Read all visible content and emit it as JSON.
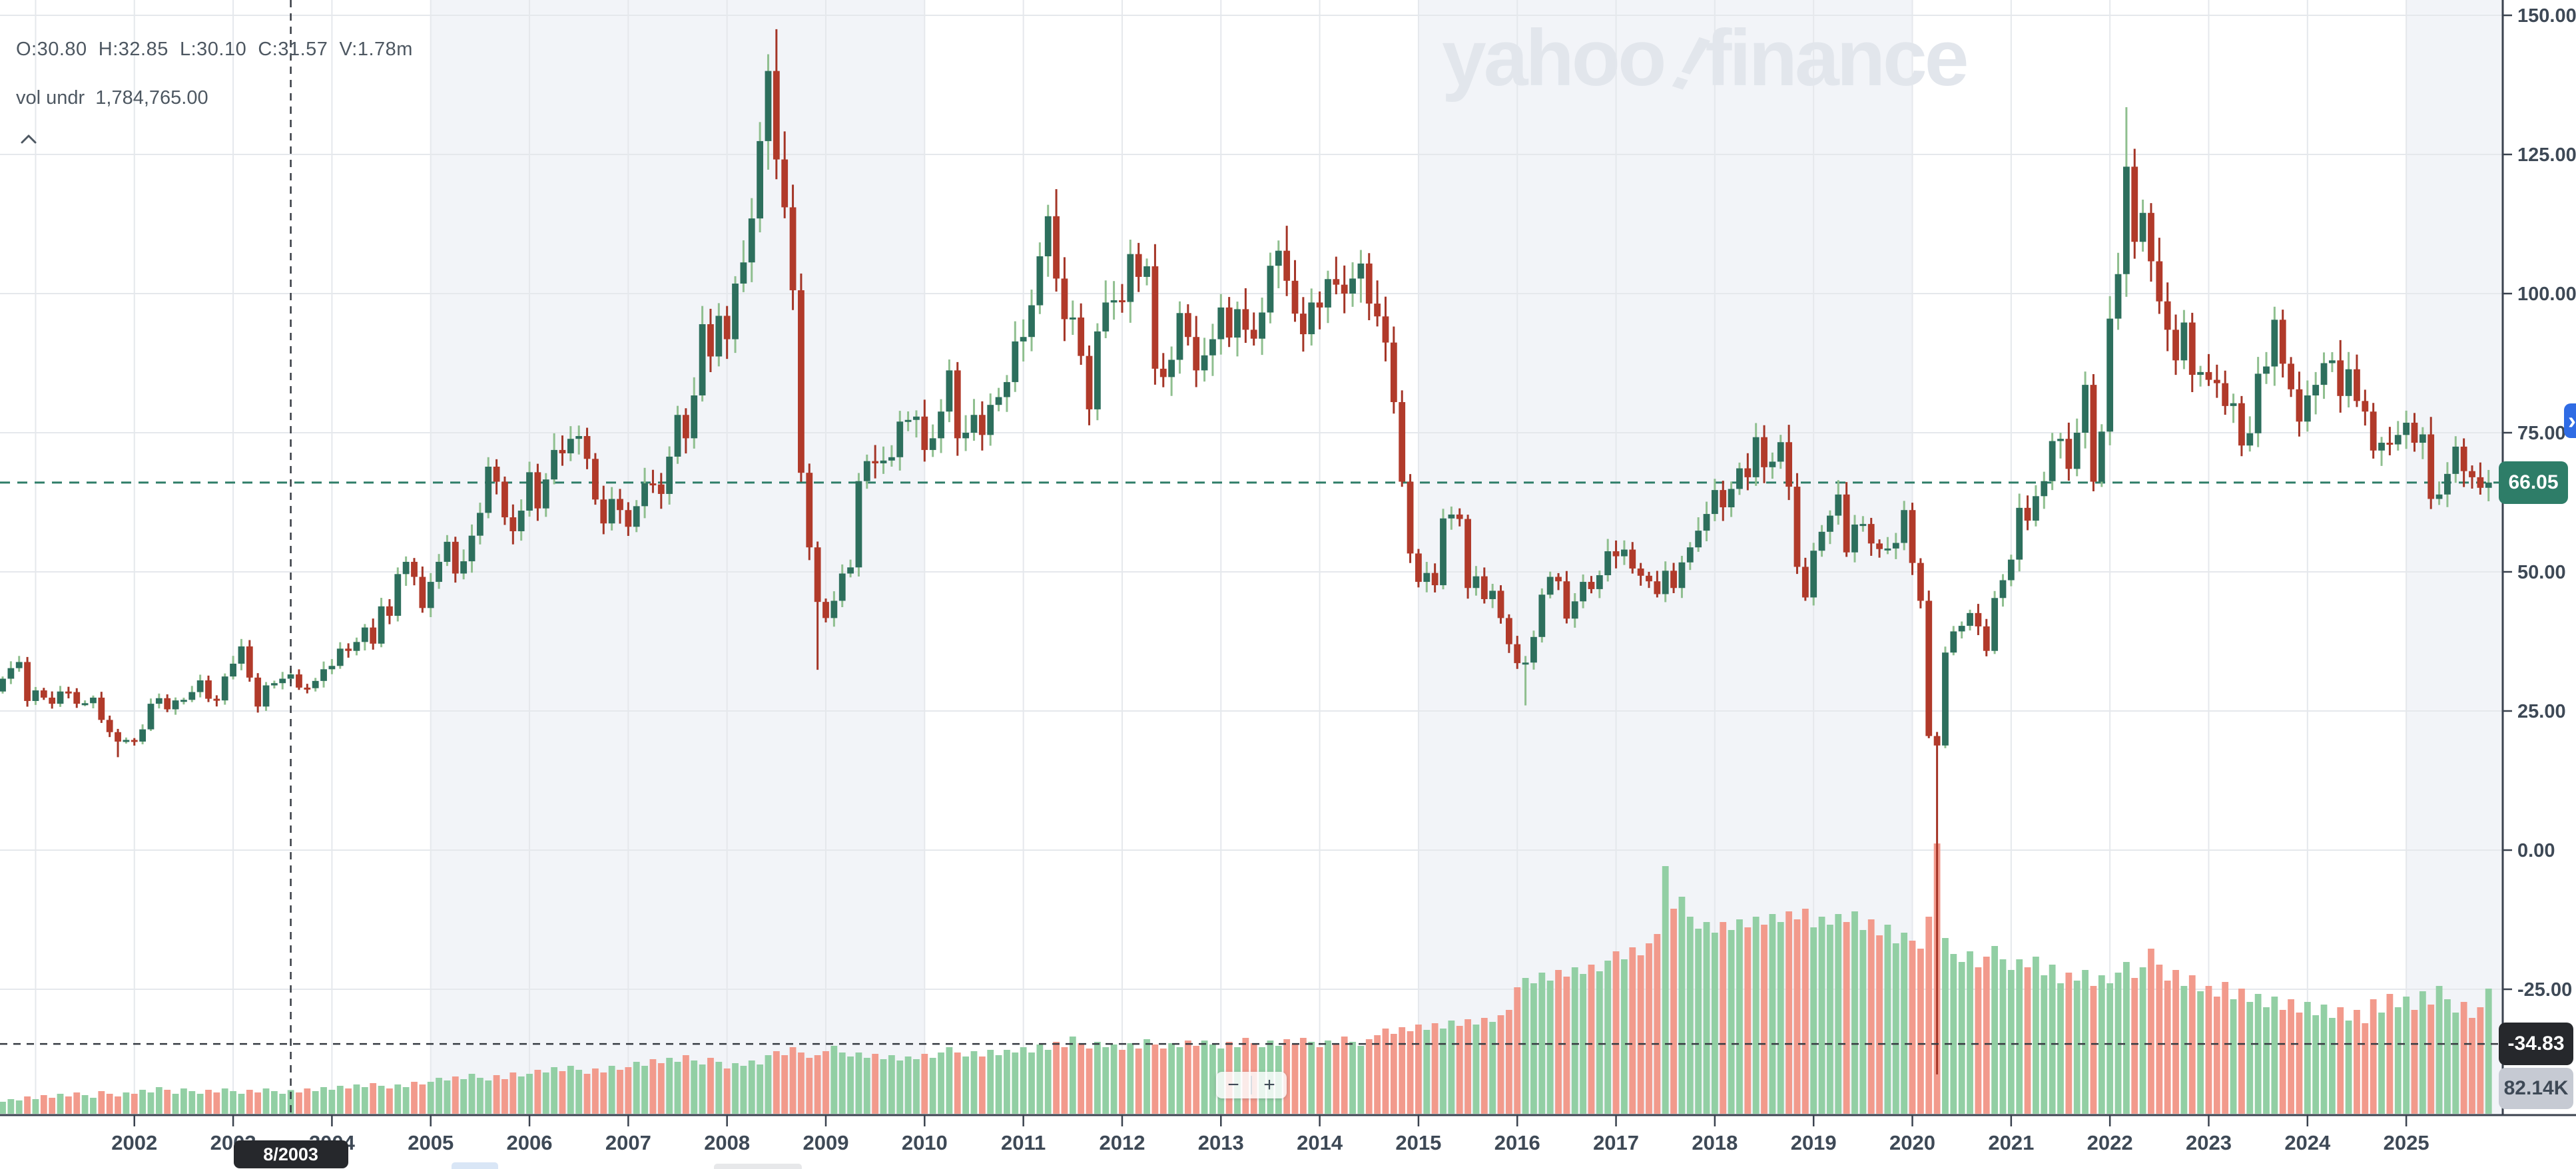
{
  "watermark": {
    "part1": "yahoo",
    "bang": "!",
    "part2": "finance",
    "color": "#e2e6ec"
  },
  "legend": {
    "ohlc_text": "O:30.80  H:32.85  L:30.10  C:31.57  V:1.78m",
    "volume_label": "vol undr",
    "volume_value": "1,784,765.00"
  },
  "price_axis": {
    "tick_values": [
      150,
      125,
      100,
      75,
      50,
      25,
      0,
      -25
    ],
    "tick_texts": [
      "150.00",
      "125.00",
      "100.00",
      "75.00",
      "50.00",
      "25.00",
      "0.00",
      "-25.00"
    ]
  },
  "time_axis": {
    "label_years": [
      2002,
      2003,
      2004,
      2005,
      2006,
      2007,
      2008,
      2009,
      2010,
      2011,
      2012,
      2013,
      2014,
      2015,
      2016,
      2017,
      2018,
      2019,
      2020,
      2021,
      2022,
      2023,
      2024,
      2025
    ],
    "gridline_years": [
      2001,
      2002,
      2003,
      2004,
      2005,
      2006,
      2007,
      2008,
      2009,
      2010,
      2011,
      2012,
      2013,
      2014,
      2015,
      2016,
      2017,
      2018,
      2019,
      2020,
      2021,
      2022,
      2023,
      2024,
      2025
    ]
  },
  "overlays": {
    "current_price": {
      "text": "66.05",
      "value": 66.05
    },
    "crosshair": {
      "month_index": 35,
      "date_label": "8/2003",
      "price_label": "-34.83",
      "price_value": -34.83,
      "volume_label": "82.14K"
    }
  },
  "controls": {
    "zoom_out": "−",
    "zoom_in": "+",
    "expand_arrow": "›"
  },
  "colors": {
    "candle_up": "#2d6f5d",
    "candle_up_wick": "#8fbf8f",
    "candle_down": "#b13a2a",
    "candle_down_wick": "#a43527",
    "vol_up": "#92cfa4",
    "vol_down": "#f29a8c",
    "grid": "#e5e8ec",
    "band": "#f2f4f8",
    "axis_line": "#3a424e",
    "axis_text": "#3e4956",
    "price_line": "#2e7d68",
    "price_flag_bg": "#2e7d68",
    "crosshair": "#363b42",
    "crosshair_flag_bg": "#26282c",
    "vol_flag_bg": "#c6cad3",
    "vol_flag_text": "#3e4956",
    "legend_text": "#4d5761",
    "accent_blue": "#2f6be4"
  },
  "chart_data": {
    "type": "candlestick+volume",
    "title": "",
    "frequency": "monthly",
    "start_month": "2000-09",
    "end_month": "2025-11",
    "first_open": 28.5,
    "ylim_price": [
      -46,
      152
    ],
    "grid": true,
    "shaded_year_bands": [
      [
        2005,
        2010
      ],
      [
        2015,
        2020
      ],
      [
        2025,
        2026.3
      ]
    ],
    "closes": [
      30.8,
      32.7,
      33.8,
      26.8,
      28.7,
      27.4,
      26.3,
      28.5,
      28.4,
      26.3,
      26.4,
      27.4,
      23.4,
      21.2,
      19.5,
      19.8,
      19.5,
      21.7,
      26.3,
      27.3,
      25.3,
      26.9,
      27.0,
      28.4,
      30.5,
      27.2,
      26.9,
      31.2,
      33.5,
      36.6,
      31.0,
      25.8,
      29.6,
      30.0,
      30.8,
      31.57,
      29.2,
      29.1,
      30.4,
      32.5,
      33.1,
      36.2,
      35.8,
      37.4,
      40.0,
      37.1,
      43.8,
      42.1,
      49.6,
      51.8,
      49.1,
      43.5,
      48.2,
      51.8,
      55.4,
      49.7,
      51.9,
      56.5,
      60.6,
      68.9,
      66.2,
      59.8,
      57.3,
      61.0,
      67.9,
      61.4,
      66.6,
      71.9,
      71.3,
      73.9,
      74.4,
      70.3,
      63.0,
      58.7,
      63.1,
      61.1,
      58.1,
      61.8,
      65.9,
      65.7,
      64.0,
      70.7,
      78.2,
      74.0,
      81.7,
      94.5,
      88.7,
      96.0,
      91.8,
      101.8,
      105.6,
      113.5,
      127.4,
      140.0,
      124.1,
      115.5,
      100.6,
      67.8,
      54.4,
      44.6,
      41.7,
      44.8,
      49.7,
      50.8,
      66.3,
      69.9,
      69.5,
      70.0,
      70.6,
      77.0,
      77.3,
      77.9,
      71.9,
      74.0,
      78.8,
      86.2,
      74.0,
      75.0,
      78.2,
      74.6,
      80.0,
      81.4,
      84.1,
      91.4,
      92.2,
      97.9,
      106.7,
      113.9,
      102.7,
      95.4,
      95.7,
      88.8,
      79.2,
      93.2,
      98.4,
      98.8,
      98.5,
      107.1,
      103.0,
      104.9,
      86.5,
      85.0,
      88.1,
      96.5,
      92.2,
      86.2,
      88.9,
      91.8,
      97.5,
      92.1,
      97.2,
      93.5,
      91.9,
      96.6,
      105.0,
      107.7,
      102.3,
      96.4,
      92.7,
      98.4,
      97.5,
      102.6,
      101.6,
      100.0,
      102.7,
      105.4,
      98.2,
      95.9,
      91.2,
      80.5,
      66.2,
      53.3,
      48.2,
      49.8,
      47.6,
      59.6,
      60.3,
      59.5,
      47.1,
      49.2,
      45.1,
      46.6,
      41.7,
      37.0,
      33.6,
      33.7,
      38.3,
      45.9,
      49.1,
      48.3,
      41.6,
      44.7,
      48.2,
      46.9,
      49.4,
      53.7,
      52.8,
      54.0,
      50.6,
      49.3,
      48.3,
      46.0,
      50.2,
      47.1,
      51.7,
      54.4,
      57.4,
      60.4,
      64.7,
      61.6,
      64.9,
      68.6,
      67.0,
      74.2,
      68.8,
      69.8,
      73.3,
      65.3,
      50.9,
      45.4,
      53.8,
      57.2,
      60.1,
      63.9,
      53.5,
      58.5,
      58.6,
      55.1,
      54.1,
      54.2,
      55.2,
      61.1,
      51.6,
      44.8,
      20.5,
      18.8,
      35.5,
      39.3,
      40.3,
      42.6,
      40.2,
      35.8,
      45.3,
      48.5,
      52.2,
      61.5,
      59.2,
      63.6,
      66.3,
      73.5,
      73.9,
      68.5,
      75.0,
      83.6,
      66.2,
      75.2,
      95.5,
      103.5,
      122.8,
      109.3,
      114.5,
      105.8,
      98.6,
      93.5,
      88.0,
      94.8,
      85.4,
      85.9,
      84.5,
      83.9,
      79.8,
      80.3,
      72.7,
      74.9,
      85.6,
      86.9,
      95.3,
      87.4,
      82.8,
      77.0,
      81.7,
      83.6,
      87.5,
      88.0,
      81.6,
      86.4,
      80.7,
      78.8,
      71.8,
      73.2,
      72.9,
      74.6,
      76.8,
      73.2,
      74.7,
      63.1,
      63.9,
      67.6,
      72.5,
      68.1,
      67.0,
      65.1,
      66.05
    ],
    "volumes_millions": [
      0.9,
      1.1,
      1.0,
      1.3,
      1.1,
      1.4,
      1.2,
      1.5,
      1.3,
      1.6,
      1.4,
      1.2,
      1.7,
      1.5,
      1.3,
      1.6,
      1.5,
      1.8,
      1.6,
      2.0,
      1.8,
      1.5,
      1.9,
      1.7,
      1.5,
      1.8,
      1.6,
      1.9,
      1.7,
      1.5,
      1.8,
      1.6,
      1.9,
      1.7,
      1.5,
      1.78,
      1.6,
      1.9,
      1.7,
      2.0,
      1.8,
      2.1,
      1.9,
      2.2,
      2.0,
      2.3,
      2.1,
      1.9,
      2.2,
      2.0,
      2.4,
      2.2,
      2.4,
      2.7,
      2.5,
      2.8,
      2.6,
      3.0,
      2.7,
      2.5,
      2.9,
      2.6,
      3.1,
      2.8,
      3.0,
      3.3,
      3.1,
      3.5,
      3.2,
      3.6,
      3.3,
      3.0,
      3.4,
      3.1,
      3.6,
      3.3,
      3.5,
      3.9,
      3.6,
      4.1,
      3.8,
      4.2,
      3.9,
      4.4,
      4.0,
      3.7,
      4.2,
      3.9,
      3.4,
      3.8,
      3.6,
      4.0,
      3.7,
      4.4,
      4.7,
      4.4,
      5.0,
      4.6,
      4.2,
      4.4,
      4.7,
      5.1,
      4.6,
      4.3,
      4.6,
      4.2,
      4.5,
      4.1,
      4.4,
      4.0,
      4.3,
      4.1,
      4.5,
      4.2,
      4.6,
      5.0,
      4.6,
      4.3,
      4.7,
      4.3,
      4.8,
      4.4,
      4.8,
      4.6,
      5.0,
      4.6,
      5.2,
      4.8,
      5.4,
      5.0,
      5.8,
      5.3,
      4.9,
      5.4,
      5.0,
      5.2,
      4.8,
      5.3,
      4.9,
      5.6,
      5.2,
      4.9,
      5.3,
      5.0,
      5.5,
      5.1,
      5.5,
      5.2,
      4.9,
      5.4,
      5.0,
      5.7,
      5.3,
      5.0,
      5.5,
      5.1,
      5.6,
      5.2,
      5.7,
      5.4,
      5.0,
      5.5,
      5.2,
      5.8,
      5.4,
      5.1,
      5.6,
      5.9,
      6.4,
      6.0,
      6.5,
      6.2,
      6.7,
      6.3,
      6.8,
      6.4,
      7.0,
      6.6,
      7.1,
      6.7,
      7.2,
      6.9,
      7.4,
      7.8,
      9.5,
      10.2,
      9.8,
      10.6,
      10.0,
      10.8,
      10.3,
      11.0,
      10.5,
      11.2,
      10.7,
      11.5,
      12.2,
      11.6,
      12.5,
      11.9,
      12.8,
      13.5,
      18.6,
      15.4,
      16.3,
      14.8,
      13.9,
      14.4,
      13.6,
      14.4,
      13.8,
      14.6,
      14.0,
      14.8,
      14.2,
      15.0,
      14.4,
      15.2,
      14.6,
      15.4,
      14.0,
      14.8,
      14.2,
      15.0,
      14.4,
      15.2,
      13.8,
      14.6,
      13.4,
      14.2,
      12.8,
      13.6,
      13.0,
      12.4,
      14.8,
      20.3,
      13.2,
      12.0,
      11.4,
      12.2,
      11.0,
      11.8,
      12.6,
      11.6,
      10.8,
      11.6,
      11.0,
      11.8,
      10.4,
      11.2,
      9.8,
      10.6,
      10.0,
      10.8,
      9.6,
      10.4,
      9.8,
      10.6,
      11.4,
      10.2,
      11.0,
      12.4,
      11.2,
      10.0,
      10.8,
      9.6,
      10.4,
      9.2,
      9.6,
      8.8,
      9.9,
      8.6,
      9.4,
      8.4,
      9.0,
      8.0,
      8.8,
      7.8,
      8.6,
      7.6,
      8.4,
      7.4,
      8.2,
      7.2,
      8.0,
      7.0,
      7.8,
      6.8,
      8.6,
      7.6,
      9.0,
      8.0,
      8.8,
      7.8,
      9.2,
      8.2,
      9.6,
      8.6,
      7.6,
      8.4,
      7.2,
      8.0,
      9.4
    ],
    "wick_high_overrides": {
      "94": 147.5,
      "258": 133.5
    },
    "wick_low_overrides": {
      "14": 16.7,
      "99": 32.4,
      "185": 26.0,
      "235": -40.3
    },
    "hovered_candle": {
      "index": 35,
      "open": 30.8,
      "high": 32.85,
      "low": 30.1,
      "close": 31.57,
      "volume": "1.78m"
    },
    "last_price": 66.05
  }
}
